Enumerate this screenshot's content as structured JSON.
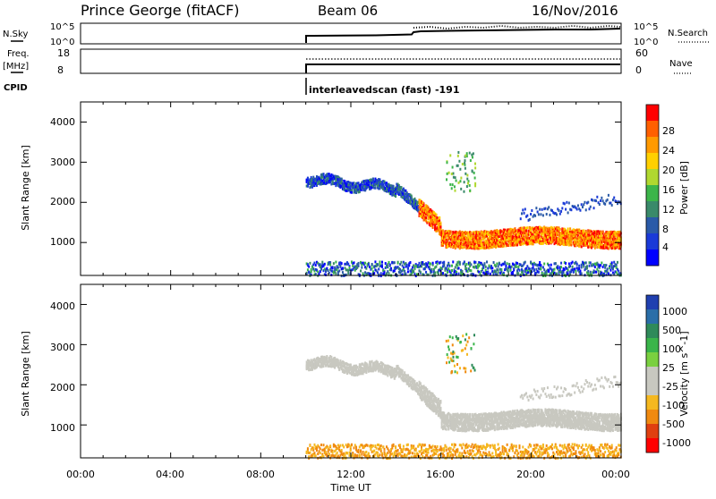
{
  "header": {
    "station": "Prince George (fitACF)",
    "beam": "Beam 06",
    "date": "16/Nov/2016"
  },
  "top_panels": {
    "nsky_label": "N.Sky",
    "nsky_ticks": [
      "10^5",
      "10^0"
    ],
    "nsearch_label": "N.Search",
    "nsearch_ticks": [
      "10^5",
      "10^0"
    ],
    "freq_label": "Freq.",
    "freq_unit": "[MHz]",
    "freq_ticks": [
      "18",
      "8"
    ],
    "nave_label": "Nave",
    "nave_ticks": [
      "60",
      "0"
    ],
    "cpid_label": "CPID",
    "cpid_value": "interleavedscan (fast) -191"
  },
  "chart_data": [
    {
      "type": "heatmap",
      "name": "power",
      "ylabel": "Slant Range [km]",
      "y_ticks": [
        "4000",
        "3000",
        "2000",
        "1000"
      ],
      "colorbar_label": "Power [dB]",
      "colorbar_ticks": [
        "28",
        "24",
        "20",
        "16",
        "12",
        "8",
        "4"
      ],
      "colorbar_colors": [
        "#ff0000",
        "#ff6000",
        "#ff9a00",
        "#ffd000",
        "#b0d830",
        "#3cb54a",
        "#3a8a6a",
        "#2a5aa8",
        "#1a3ad8",
        "#0000ff"
      ],
      "xlim_hours": [
        0,
        24
      ],
      "ylim_km": [
        180,
        4500
      ]
    },
    {
      "type": "heatmap",
      "name": "velocity",
      "ylabel": "Slant Range [km]",
      "y_ticks": [
        "4000",
        "3000",
        "2000",
        "1000"
      ],
      "colorbar_label": "Velocity [m s^-1]",
      "colorbar_ticks": [
        "1000",
        "500",
        "100",
        "25",
        "-25",
        "-100",
        "-500",
        "-1000"
      ],
      "colorbar_colors": [
        "#2040b0",
        "#2a6ea8",
        "#2f8a5a",
        "#3ab54a",
        "#7ad040",
        "#c8c8c0",
        "#c8c8c0",
        "#f5b820",
        "#f08a10",
        "#e04010",
        "#ff0000"
      ],
      "xlim_hours": [
        0,
        24
      ],
      "ylim_km": [
        180,
        4500
      ]
    }
  ],
  "x_axis": {
    "ticks": [
      "00:00",
      "04:00",
      "08:00",
      "12:00",
      "16:00",
      "20:00",
      "00:00"
    ],
    "label": "Time UT"
  }
}
